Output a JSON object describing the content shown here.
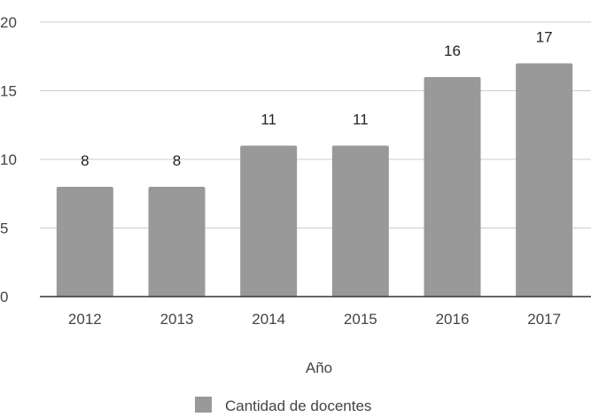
{
  "chart_data": {
    "type": "bar",
    "categories": [
      "2012",
      "2013",
      "2014",
      "2015",
      "2016",
      "2017"
    ],
    "series": [
      {
        "name": "Cantidad de docentes",
        "values": [
          8,
          8,
          11,
          11,
          16,
          17
        ],
        "color": "#999999"
      }
    ],
    "data_labels": [
      "8",
      "8",
      "11",
      "11",
      "16",
      "17"
    ],
    "xlabel": "Año",
    "ylabel": "",
    "ylim": [
      0,
      20
    ],
    "yticks": [
      0,
      5,
      10,
      15,
      20
    ],
    "grid": true,
    "legend": "bottom",
    "colors": {
      "bar": "#999999",
      "grid": "#cccccc",
      "axis": "#333333",
      "text": "#444444",
      "label": "#222222"
    }
  }
}
